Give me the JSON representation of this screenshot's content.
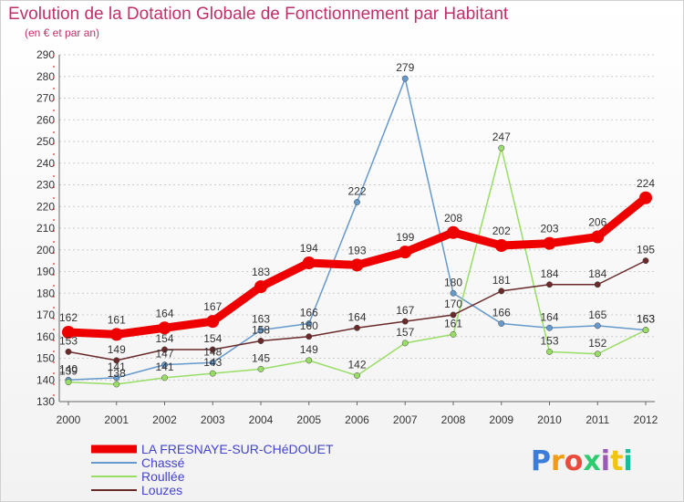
{
  "title": "Evolution de la Dotation Globale de Fonctionnement par Habitant",
  "subtitle": "(en € et par an)",
  "logo": {
    "letters": [
      "P",
      "r",
      "o",
      "x",
      "i",
      "t",
      "i"
    ],
    "colors": [
      "#3b7dd8",
      "#f39c12",
      "#e74c3c",
      "#2ecc71",
      "#9b59b6",
      "#f1c40f",
      "#1abc9c"
    ]
  },
  "chart_data": {
    "type": "line",
    "title": "Evolution de la Dotation Globale de Fonctionnement par Habitant",
    "xlabel": "",
    "ylabel": "",
    "ylim": [
      130,
      290
    ],
    "yticks": [
      130,
      140,
      150,
      160,
      170,
      180,
      190,
      200,
      210,
      220,
      230,
      240,
      250,
      260,
      270,
      280,
      290
    ],
    "categories": [
      "2000",
      "2001",
      "2002",
      "2003",
      "2004",
      "2005",
      "2006",
      "2007",
      "2008",
      "2009",
      "2010",
      "2011",
      "2012"
    ],
    "series": [
      {
        "name": "LA FRESNAYE-SUR-CHéDOUET",
        "color": "#ee0000",
        "width": 9,
        "values": [
          162,
          161,
          164,
          167,
          183,
          194,
          193,
          199,
          208,
          202,
          203,
          206,
          224
        ]
      },
      {
        "name": "Chassé",
        "color": "#6699cc",
        "width": 1.5,
        "values": [
          140,
          141,
          147,
          148,
          163,
          166,
          222,
          279,
          180,
          166,
          164,
          165,
          163
        ]
      },
      {
        "name": "Roullée",
        "color": "#99dd66",
        "width": 1.5,
        "values": [
          139,
          138,
          141,
          143,
          145,
          149,
          142,
          157,
          161,
          247,
          153,
          152,
          163
        ]
      },
      {
        "name": "Louzes",
        "color": "#6b2a2a",
        "width": 1.5,
        "values": [
          153,
          149,
          154,
          154,
          158,
          160,
          164,
          167,
          170,
          181,
          184,
          184,
          195
        ]
      }
    ]
  }
}
